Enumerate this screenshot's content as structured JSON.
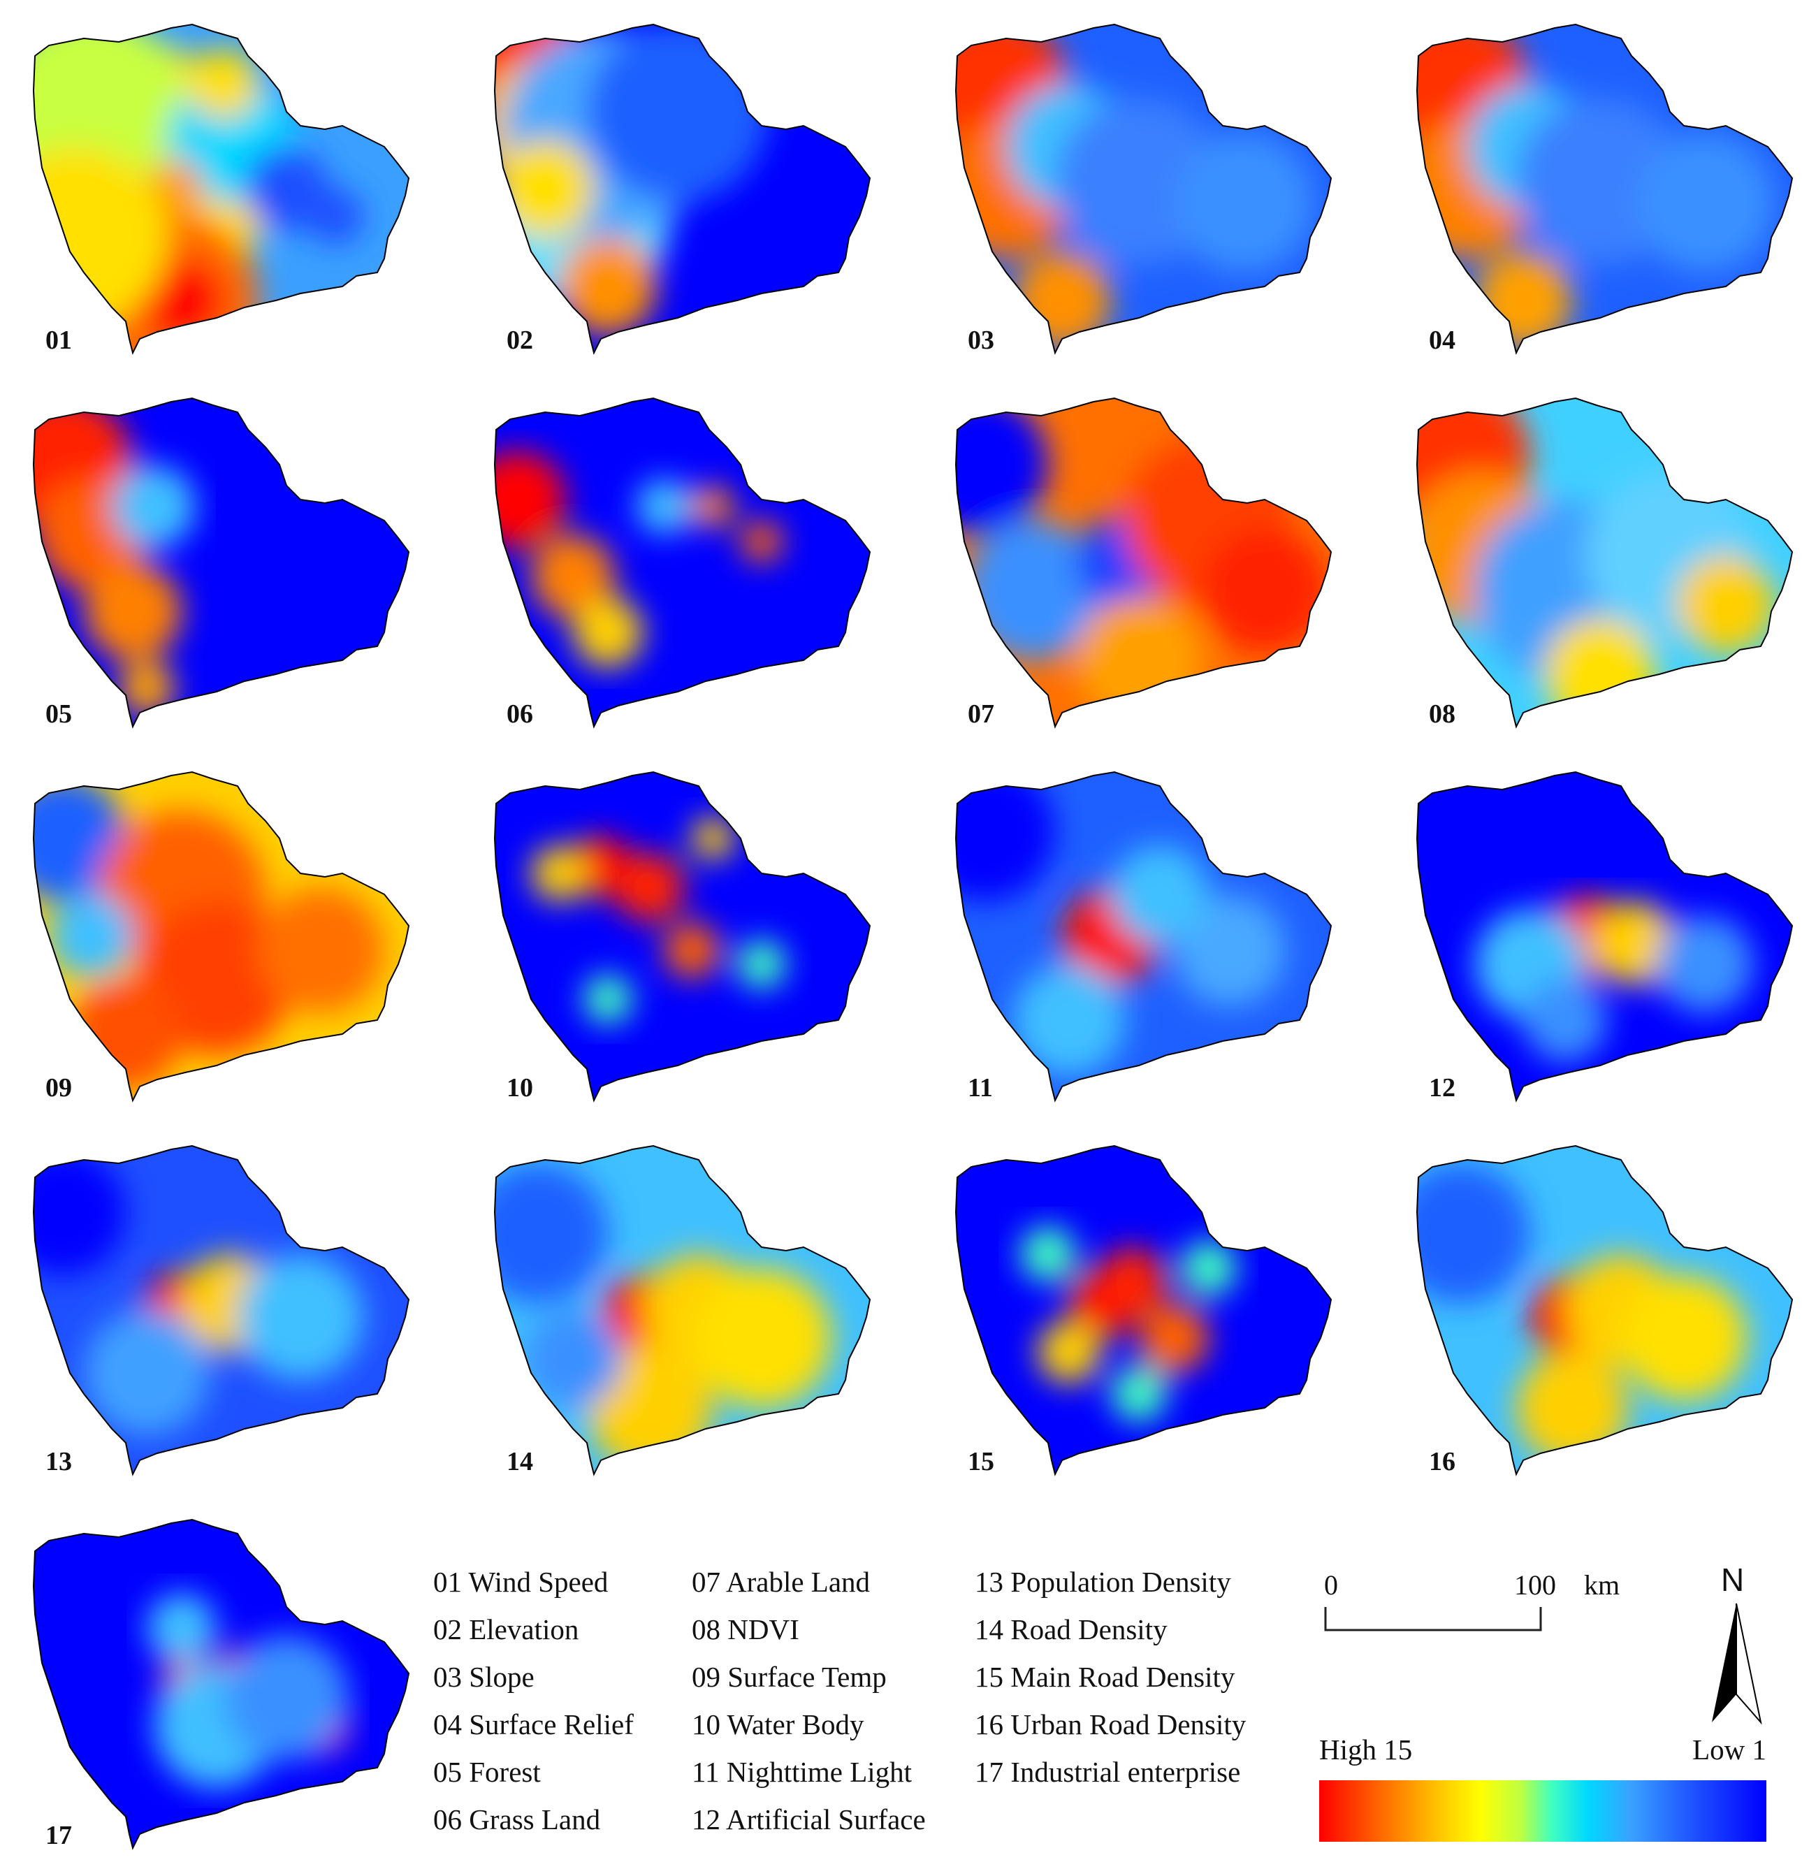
{
  "panels": [
    {
      "num": "01",
      "color_note": "wind speed"
    },
    {
      "num": "02"
    },
    {
      "num": "03"
    },
    {
      "num": "04"
    },
    {
      "num": "05"
    },
    {
      "num": "06"
    },
    {
      "num": "07"
    },
    {
      "num": "08"
    },
    {
      "num": "09"
    },
    {
      "num": "10"
    },
    {
      "num": "11"
    },
    {
      "num": "12"
    },
    {
      "num": "13"
    },
    {
      "num": "14"
    },
    {
      "num": "15"
    },
    {
      "num": "16"
    },
    {
      "num": "17"
    }
  ],
  "legend": {
    "col1": [
      "01 Wind Speed",
      "02 Elevation",
      "03 Slope",
      "04 Surface Relief",
      "05 Forest",
      "06 Grass Land"
    ],
    "col2": [
      "07 Arable Land",
      "08 NDVI",
      "09 Surface Temp",
      "10 Water Body",
      "11 Nighttime Light",
      "12 Artificial Surface"
    ],
    "col3": [
      "13 Population Density",
      "14 Road Density",
      "15 Main Road Density",
      "16 Urban Road Density",
      "17 Industrial enterprise"
    ]
  },
  "scale_bar": {
    "start": "0",
    "end": "100",
    "unit": "km"
  },
  "north_arrow": {
    "label": "N"
  },
  "color_ramp": {
    "high_label": "High 15",
    "low_label": "Low 1",
    "colors": {
      "high": "#ff0000",
      "mid": "#ffff00",
      "cyan": "#00d8ff",
      "low": "#0000ff"
    }
  }
}
